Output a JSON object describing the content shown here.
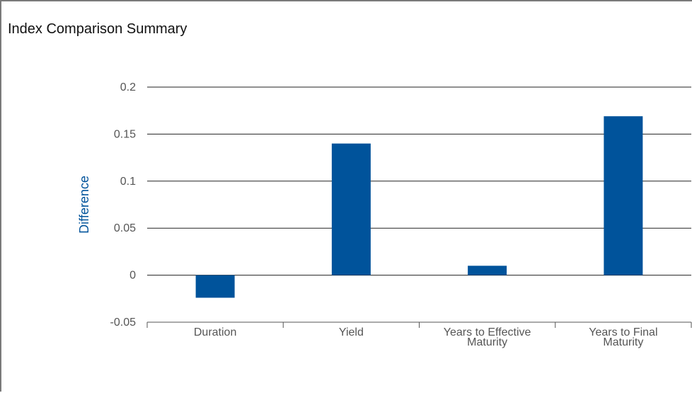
{
  "chart_data": {
    "type": "bar",
    "title": "Index Comparison Summary",
    "xlabel": "",
    "ylabel": "Difference",
    "categories": [
      [
        "Duration"
      ],
      [
        "Yield"
      ],
      [
        "Years to Effective",
        "Maturity"
      ],
      [
        "Years to Final",
        "Maturity"
      ]
    ],
    "values": [
      -0.024,
      0.14,
      0.01,
      0.169
    ],
    "ylim": [
      -0.05,
      0.2
    ],
    "yticks": [
      "0.2",
      "0.15",
      "0.1",
      "0.05",
      "0",
      "-0.05"
    ],
    "ytick_values": [
      0.2,
      0.15,
      0.1,
      0.05,
      0,
      -0.05
    ],
    "grid": true,
    "legend": "none",
    "colors": {
      "bar": "#00539b",
      "ylabel": "#00539b",
      "grid": "#222222",
      "axis": "#555555"
    }
  }
}
